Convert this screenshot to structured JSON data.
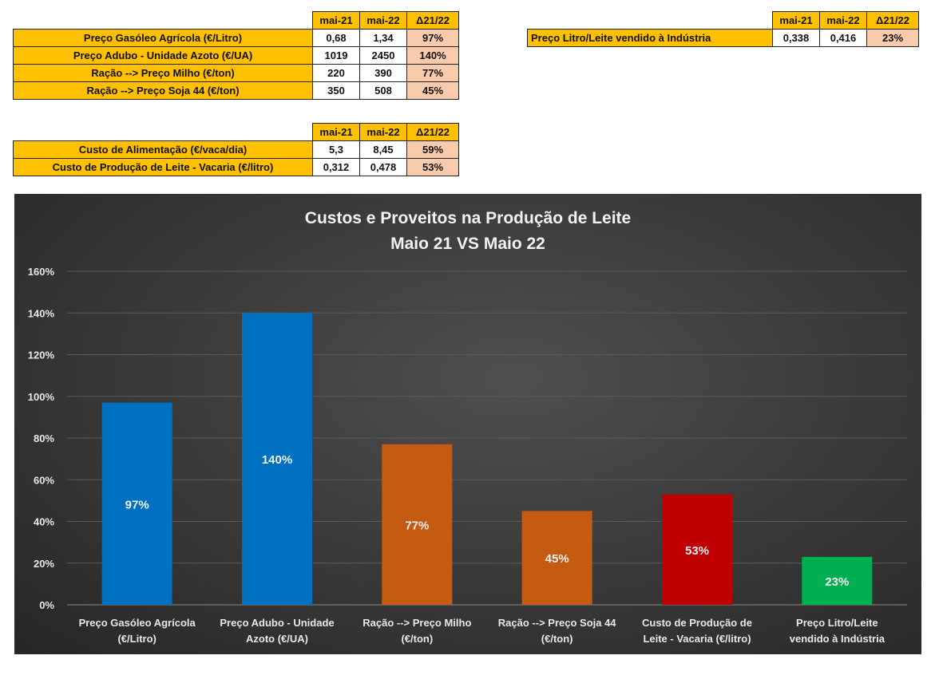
{
  "table_prices": {
    "headers": [
      "mai-21",
      "mai-22",
      "Δ21/22"
    ],
    "rows": [
      {
        "label": "Preço Gasóleo Agrícola (€/Litro)",
        "mai21": "0,68",
        "mai22": "1,34",
        "delta": "97%"
      },
      {
        "label": "Preço Adubo - Unidade Azoto (€/UA)",
        "mai21": "1019",
        "mai22": "2450",
        "delta": "140%"
      },
      {
        "label": "Ração --> Preço Milho (€/ton)",
        "mai21": "220",
        "mai22": "390",
        "delta": "77%"
      },
      {
        "label": "Ração --> Preço Soja 44 (€/ton)",
        "mai21": "350",
        "mai22": "508",
        "delta": "45%"
      }
    ]
  },
  "table_costs": {
    "headers": [
      "mai-21",
      "mai-22",
      "Δ21/22"
    ],
    "rows": [
      {
        "label": "Custo de Alimentação (€/vaca/dia)",
        "mai21": "5,3",
        "mai22": "8,45",
        "delta": "59%"
      },
      {
        "label": "Custo de Produção de Leite - Vacaria (€/litro)",
        "mai21": "0,312",
        "mai22": "0,478",
        "delta": "53%"
      }
    ]
  },
  "table_milk": {
    "headers": [
      "mai-21",
      "mai-22",
      "Δ21/22"
    ],
    "rows": [
      {
        "label": "Preço Litro/Leite vendido à Indústria",
        "mai21": "0,338",
        "mai22": "0,416",
        "delta": "23%"
      }
    ]
  },
  "chart_data": {
    "type": "bar",
    "title": "Custos e Proveitos na Produção de Leite",
    "subtitle": "Maio 21 VS Maio 22",
    "categories": [
      [
        "Preço Gasóleo Agrícola",
        "(€/Litro)"
      ],
      [
        "Preço Adubo - Unidade",
        "Azoto (€/UA)"
      ],
      [
        "Ração --> Preço Milho",
        "(€/ton)"
      ],
      [
        "Ração --> Preço Soja 44",
        "(€/ton)"
      ],
      [
        "Custo de Produção de",
        "Leite - Vacaria (€/litro)"
      ],
      [
        "Preço Litro/Leite",
        "vendido à Indústria"
      ]
    ],
    "values": [
      97,
      140,
      77,
      45,
      53,
      23
    ],
    "data_labels": [
      "97%",
      "140%",
      "77%",
      "45%",
      "53%",
      "23%"
    ],
    "colors": [
      "#0070c0",
      "#0070c0",
      "#c55a11",
      "#c55a11",
      "#c00000",
      "#00b050"
    ],
    "yticks": [
      "0%",
      "20%",
      "40%",
      "60%",
      "80%",
      "100%",
      "120%",
      "140%",
      "160%"
    ],
    "ylim": [
      0,
      160
    ],
    "grid": true,
    "legend": "none"
  }
}
